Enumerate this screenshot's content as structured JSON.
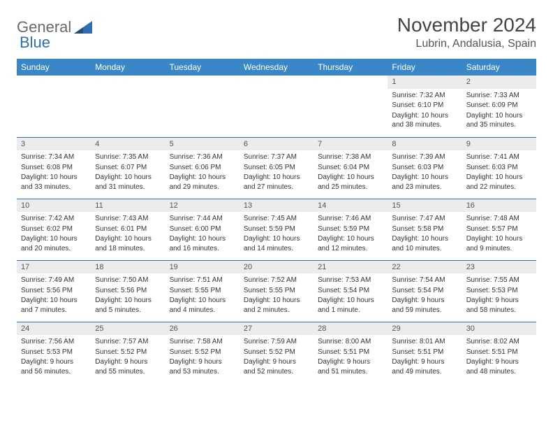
{
  "logo": {
    "text1": "General",
    "text2": "Blue"
  },
  "title": "November 2024",
  "location": "Lubrin, Andalusia, Spain",
  "colors": {
    "header_bg": "#3a87c7",
    "header_fg": "#ffffff",
    "daynum_bg": "#ececec",
    "row_border": "#2f6fb0",
    "logo_gray": "#6a6a6a",
    "logo_blue": "#2f6fb0"
  },
  "weekdays": [
    "Sunday",
    "Monday",
    "Tuesday",
    "Wednesday",
    "Thursday",
    "Friday",
    "Saturday"
  ],
  "weeks": [
    [
      null,
      null,
      null,
      null,
      null,
      {
        "n": "1",
        "sunrise": "Sunrise: 7:32 AM",
        "sunset": "Sunset: 6:10 PM",
        "daylight": "Daylight: 10 hours and 38 minutes."
      },
      {
        "n": "2",
        "sunrise": "Sunrise: 7:33 AM",
        "sunset": "Sunset: 6:09 PM",
        "daylight": "Daylight: 10 hours and 35 minutes."
      }
    ],
    [
      {
        "n": "3",
        "sunrise": "Sunrise: 7:34 AM",
        "sunset": "Sunset: 6:08 PM",
        "daylight": "Daylight: 10 hours and 33 minutes."
      },
      {
        "n": "4",
        "sunrise": "Sunrise: 7:35 AM",
        "sunset": "Sunset: 6:07 PM",
        "daylight": "Daylight: 10 hours and 31 minutes."
      },
      {
        "n": "5",
        "sunrise": "Sunrise: 7:36 AM",
        "sunset": "Sunset: 6:06 PM",
        "daylight": "Daylight: 10 hours and 29 minutes."
      },
      {
        "n": "6",
        "sunrise": "Sunrise: 7:37 AM",
        "sunset": "Sunset: 6:05 PM",
        "daylight": "Daylight: 10 hours and 27 minutes."
      },
      {
        "n": "7",
        "sunrise": "Sunrise: 7:38 AM",
        "sunset": "Sunset: 6:04 PM",
        "daylight": "Daylight: 10 hours and 25 minutes."
      },
      {
        "n": "8",
        "sunrise": "Sunrise: 7:39 AM",
        "sunset": "Sunset: 6:03 PM",
        "daylight": "Daylight: 10 hours and 23 minutes."
      },
      {
        "n": "9",
        "sunrise": "Sunrise: 7:41 AM",
        "sunset": "Sunset: 6:03 PM",
        "daylight": "Daylight: 10 hours and 22 minutes."
      }
    ],
    [
      {
        "n": "10",
        "sunrise": "Sunrise: 7:42 AM",
        "sunset": "Sunset: 6:02 PM",
        "daylight": "Daylight: 10 hours and 20 minutes."
      },
      {
        "n": "11",
        "sunrise": "Sunrise: 7:43 AM",
        "sunset": "Sunset: 6:01 PM",
        "daylight": "Daylight: 10 hours and 18 minutes."
      },
      {
        "n": "12",
        "sunrise": "Sunrise: 7:44 AM",
        "sunset": "Sunset: 6:00 PM",
        "daylight": "Daylight: 10 hours and 16 minutes."
      },
      {
        "n": "13",
        "sunrise": "Sunrise: 7:45 AM",
        "sunset": "Sunset: 5:59 PM",
        "daylight": "Daylight: 10 hours and 14 minutes."
      },
      {
        "n": "14",
        "sunrise": "Sunrise: 7:46 AM",
        "sunset": "Sunset: 5:59 PM",
        "daylight": "Daylight: 10 hours and 12 minutes."
      },
      {
        "n": "15",
        "sunrise": "Sunrise: 7:47 AM",
        "sunset": "Sunset: 5:58 PM",
        "daylight": "Daylight: 10 hours and 10 minutes."
      },
      {
        "n": "16",
        "sunrise": "Sunrise: 7:48 AM",
        "sunset": "Sunset: 5:57 PM",
        "daylight": "Daylight: 10 hours and 9 minutes."
      }
    ],
    [
      {
        "n": "17",
        "sunrise": "Sunrise: 7:49 AM",
        "sunset": "Sunset: 5:56 PM",
        "daylight": "Daylight: 10 hours and 7 minutes."
      },
      {
        "n": "18",
        "sunrise": "Sunrise: 7:50 AM",
        "sunset": "Sunset: 5:56 PM",
        "daylight": "Daylight: 10 hours and 5 minutes."
      },
      {
        "n": "19",
        "sunrise": "Sunrise: 7:51 AM",
        "sunset": "Sunset: 5:55 PM",
        "daylight": "Daylight: 10 hours and 4 minutes."
      },
      {
        "n": "20",
        "sunrise": "Sunrise: 7:52 AM",
        "sunset": "Sunset: 5:55 PM",
        "daylight": "Daylight: 10 hours and 2 minutes."
      },
      {
        "n": "21",
        "sunrise": "Sunrise: 7:53 AM",
        "sunset": "Sunset: 5:54 PM",
        "daylight": "Daylight: 10 hours and 1 minute."
      },
      {
        "n": "22",
        "sunrise": "Sunrise: 7:54 AM",
        "sunset": "Sunset: 5:54 PM",
        "daylight": "Daylight: 9 hours and 59 minutes."
      },
      {
        "n": "23",
        "sunrise": "Sunrise: 7:55 AM",
        "sunset": "Sunset: 5:53 PM",
        "daylight": "Daylight: 9 hours and 58 minutes."
      }
    ],
    [
      {
        "n": "24",
        "sunrise": "Sunrise: 7:56 AM",
        "sunset": "Sunset: 5:53 PM",
        "daylight": "Daylight: 9 hours and 56 minutes."
      },
      {
        "n": "25",
        "sunrise": "Sunrise: 7:57 AM",
        "sunset": "Sunset: 5:52 PM",
        "daylight": "Daylight: 9 hours and 55 minutes."
      },
      {
        "n": "26",
        "sunrise": "Sunrise: 7:58 AM",
        "sunset": "Sunset: 5:52 PM",
        "daylight": "Daylight: 9 hours and 53 minutes."
      },
      {
        "n": "27",
        "sunrise": "Sunrise: 7:59 AM",
        "sunset": "Sunset: 5:52 PM",
        "daylight": "Daylight: 9 hours and 52 minutes."
      },
      {
        "n": "28",
        "sunrise": "Sunrise: 8:00 AM",
        "sunset": "Sunset: 5:51 PM",
        "daylight": "Daylight: 9 hours and 51 minutes."
      },
      {
        "n": "29",
        "sunrise": "Sunrise: 8:01 AM",
        "sunset": "Sunset: 5:51 PM",
        "daylight": "Daylight: 9 hours and 49 minutes."
      },
      {
        "n": "30",
        "sunrise": "Sunrise: 8:02 AM",
        "sunset": "Sunset: 5:51 PM",
        "daylight": "Daylight: 9 hours and 48 minutes."
      }
    ]
  ]
}
